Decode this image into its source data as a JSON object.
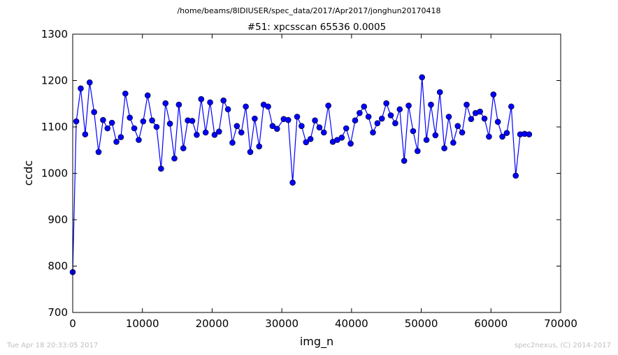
{
  "header": {
    "path": "/home/beams/8IDIUSER/spec_data/2017/Apr2017/jonghun20170418"
  },
  "footer": {
    "timestamp": "Tue Apr 18 20:33:05 2017",
    "credit": "spec2nexus, (C) 2014-2017"
  },
  "chart_data": {
    "type": "line",
    "title": "#51: xpcsscan 65536 0.0005",
    "xlabel": "img_n",
    "ylabel": "ccdc",
    "xlim": [
      0,
      70000
    ],
    "ylim": [
      700,
      1300
    ],
    "xticks": [
      0,
      10000,
      20000,
      30000,
      40000,
      50000,
      60000,
      70000
    ],
    "yticks": [
      700,
      800,
      900,
      1000,
      1100,
      1200,
      1300
    ],
    "grid": false,
    "legend": "none",
    "colors": {
      "line": "#0000ff",
      "marker": "#0000ff"
    },
    "marker": "circle",
    "series": [
      {
        "x": [
          0,
          512,
          1152,
          1792,
          2432,
          3072,
          3712,
          4352,
          4992,
          5632,
          6272,
          6912,
          7552,
          8192,
          8832,
          9472,
          10112,
          10752,
          11392,
          12032,
          12672,
          13312,
          13952,
          14592,
          15232,
          15872,
          16512,
          17152,
          17792,
          18432,
          19072,
          19712,
          20352,
          20992,
          21632,
          22272,
          22912,
          23552,
          24192,
          24832,
          25472,
          26112,
          26752,
          27392,
          28032,
          28672,
          29312,
          30272,
          30912,
          31552,
          32192,
          32832,
          33472,
          34112,
          34752,
          35392,
          36032,
          36672,
          37312,
          37952,
          38592,
          39232,
          39872,
          40512,
          41152,
          41792,
          42432,
          43072,
          43712,
          44352,
          44992,
          45632,
          46272,
          46912,
          47552,
          48192,
          48832,
          49472,
          50112,
          50752,
          51392,
          52032,
          52672,
          53312,
          53952,
          54592,
          55232,
          55872,
          56512,
          57152,
          57792,
          58432,
          59072,
          59712,
          60352,
          60992,
          61632,
          62272,
          62912,
          63552,
          64192,
          64832,
          65472
        ],
        "y": [
          787,
          1112,
          1183,
          1084,
          1196,
          1132,
          1046,
          1115,
          1097,
          1109,
          1068,
          1078,
          1172,
          1120,
          1097,
          1072,
          1112,
          1168,
          1114,
          1100,
          1010,
          1151,
          1107,
          1032,
          1148,
          1054,
          1114,
          1113,
          1083,
          1160,
          1088,
          1153,
          1083,
          1090,
          1157,
          1138,
          1066,
          1102,
          1088,
          1144,
          1046,
          1118,
          1058,
          1148,
          1144,
          1102,
          1096,
          1117,
          1115,
          980,
          1122,
          1102,
          1067,
          1074,
          1114,
          1099,
          1088,
          1146,
          1068,
          1072,
          1077,
          1097,
          1064,
          1114,
          1130,
          1144,
          1122,
          1088,
          1108,
          1118,
          1151,
          1125,
          1108,
          1138,
          1027,
          1146,
          1091,
          1048,
          1207,
          1072,
          1148,
          1082,
          1175,
          1054,
          1122,
          1066,
          1102,
          1088,
          1148,
          1117,
          1130,
          1133,
          1118,
          1079,
          1170,
          1111,
          1079,
          1087,
          1144,
          995,
          1084,
          1085,
          1084
        ]
      }
    ]
  }
}
